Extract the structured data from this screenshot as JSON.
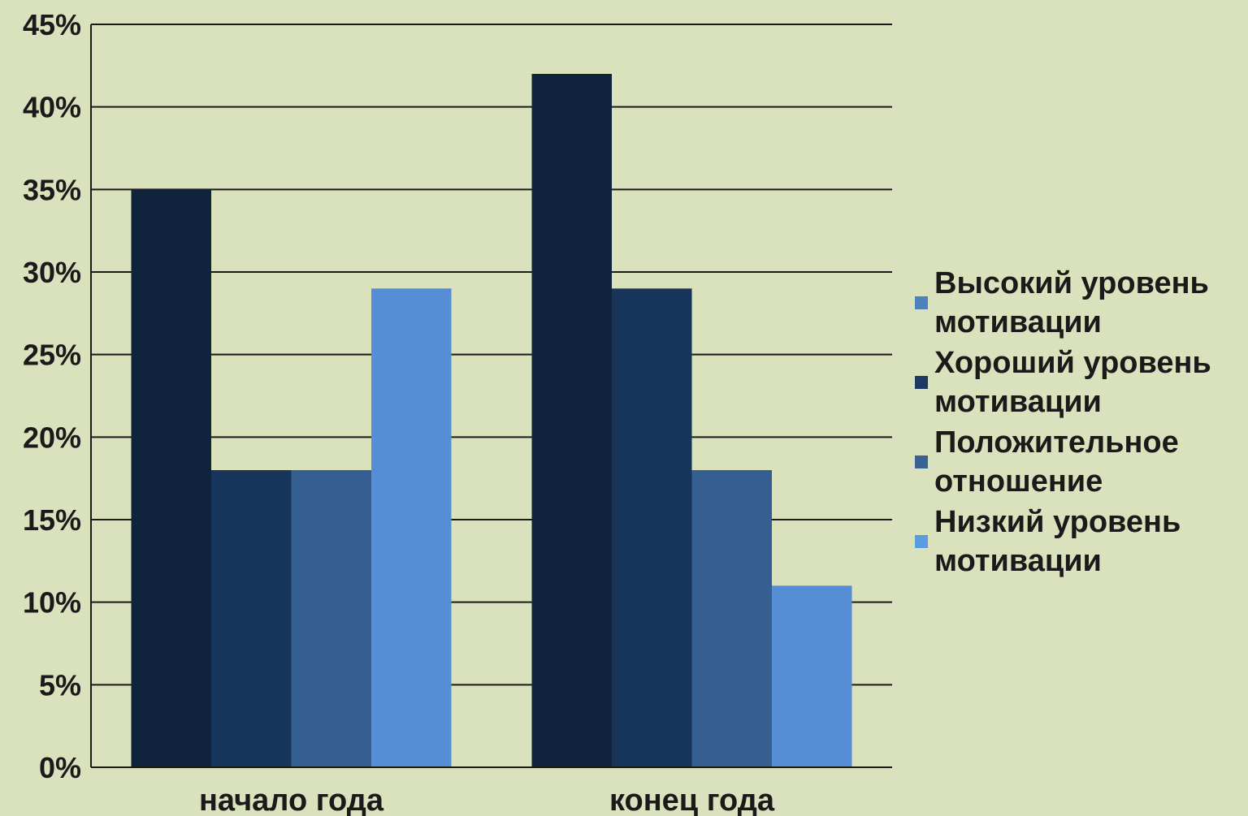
{
  "chart_data": {
    "type": "bar",
    "categories": [
      "начало года",
      "конец года"
    ],
    "series": [
      {
        "name": "Высокий уровень мотивации",
        "values": [
          35,
          42
        ],
        "color": "#10233d"
      },
      {
        "name": "Хороший уровень мотивации",
        "values": [
          18,
          29
        ],
        "color": "#17355b"
      },
      {
        "name": "Положительное отношение",
        "values": [
          18,
          18
        ],
        "color": "#365f91"
      },
      {
        "name": "Низкий уровень мотивации",
        "values": [
          29,
          11
        ],
        "color": "#558ed5"
      }
    ],
    "legend_swatch_colors": [
      "#4f81bd",
      "#1f3a60",
      "#3a6294",
      "#5b9be0"
    ],
    "ylim": [
      0,
      45
    ],
    "yticks": [
      0,
      5,
      10,
      15,
      20,
      25,
      30,
      35,
      40,
      45
    ],
    "ytick_labels": [
      "0%",
      "5%",
      "10%",
      "15%",
      "20%",
      "25%",
      "30%",
      "35%",
      "40%",
      "45%"
    ],
    "title": "",
    "xlabel": "",
    "ylabel": "",
    "grid": true,
    "legend_position": "right",
    "background": "#d9e2bd"
  }
}
